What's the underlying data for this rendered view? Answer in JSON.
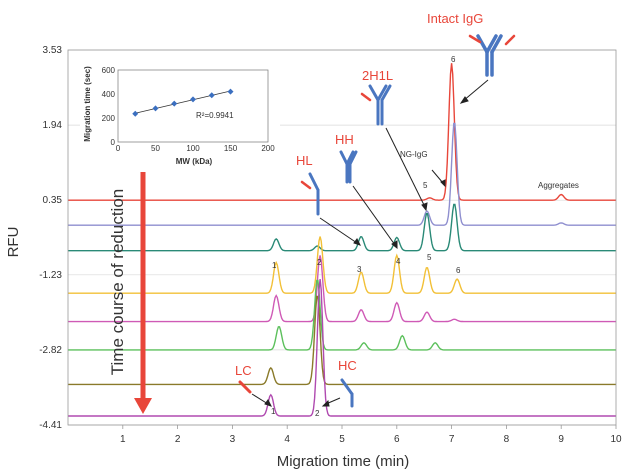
{
  "chart_data": {
    "type": "line",
    "title": "",
    "xlabel": "Migration time (min)",
    "ylabel": "RFU",
    "xlim": [
      0,
      10
    ],
    "ylim": [
      -4.41,
      3.53
    ],
    "x_ticks": [
      1,
      2,
      3,
      4,
      5,
      6,
      7,
      8,
      9,
      10
    ],
    "y_ticks": [
      "3.53",
      "1.94",
      "0.35",
      "-1.23",
      "-2.82",
      "-4.41"
    ],
    "y_tick_values": [
      3.53,
      1.94,
      0.35,
      -1.23,
      -2.82,
      -4.41
    ],
    "series": [
      {
        "color": "#e8463a",
        "baseline": 0.35,
        "peaks": [
          [
            7.0,
            2.9
          ],
          [
            9.0,
            0.12
          ],
          [
            6.6,
            0.05
          ]
        ]
      },
      {
        "color": "#8f8fcf",
        "baseline": -0.18,
        "peaks": [
          [
            7.05,
            2.2
          ],
          [
            6.55,
            0.3
          ],
          [
            9.0,
            0.05
          ]
        ]
      },
      {
        "color": "#2a8a77",
        "baseline": -0.72,
        "peaks": [
          [
            3.8,
            0.25
          ],
          [
            4.55,
            0.1
          ],
          [
            5.35,
            0.3
          ],
          [
            6.0,
            0.28
          ],
          [
            6.55,
            0.8
          ],
          [
            7.05,
            1.0
          ]
        ]
      },
      {
        "color": "#f2c037",
        "baseline": -1.62,
        "peaks": [
          [
            3.8,
            0.65
          ],
          [
            4.6,
            1.2
          ],
          [
            5.35,
            0.45
          ],
          [
            6.0,
            0.8
          ],
          [
            6.55,
            0.55
          ],
          [
            7.1,
            0.3
          ]
        ]
      },
      {
        "color": "#cf5ab6",
        "baseline": -2.22,
        "peaks": [
          [
            3.8,
            0.55
          ],
          [
            4.6,
            1.4
          ],
          [
            5.35,
            0.25
          ],
          [
            6.0,
            0.4
          ],
          [
            6.55,
            0.2
          ],
          [
            7.05,
            0.05
          ]
        ]
      },
      {
        "color": "#5cc05c",
        "baseline": -2.82,
        "peaks": [
          [
            3.85,
            0.5
          ],
          [
            4.55,
            1.5
          ],
          [
            5.4,
            0.15
          ],
          [
            6.1,
            0.3
          ],
          [
            6.7,
            0.15
          ]
        ]
      },
      {
        "color": "#8a7a2a",
        "baseline": -3.55,
        "peaks": [
          [
            3.7,
            0.35
          ],
          [
            4.55,
            1.9
          ]
        ]
      },
      {
        "color": "#b04ab0",
        "baseline": -4.22,
        "peaks": [
          [
            3.7,
            0.45
          ],
          [
            4.6,
            2.9
          ]
        ]
      }
    ],
    "annotations": {
      "intact": "Intact IgG",
      "h2l": "2H1L",
      "hh": "HH",
      "hl": "HL",
      "lc": "LC",
      "hc": "HC",
      "ngigg": "NG-IgG",
      "aggregates": "Aggregates",
      "time_course": "Time course of reduction",
      "peak_labels": [
        "1",
        "2",
        "3",
        "4",
        "5",
        "6"
      ]
    },
    "inset": {
      "type": "scatter",
      "xlabel": "MW (kDa)",
      "ylabel": "Migration time (sec)",
      "x_ticks": [
        0,
        50,
        100,
        150,
        200
      ],
      "y_ticks": [
        0,
        200,
        400,
        600
      ],
      "x": [
        23,
        50,
        75,
        100,
        125,
        150
      ],
      "y": [
        235,
        280,
        320,
        355,
        390,
        420
      ],
      "r2": "R²=0.9941",
      "xlim": [
        0,
        200
      ],
      "ylim": [
        0,
        600
      ]
    }
  }
}
